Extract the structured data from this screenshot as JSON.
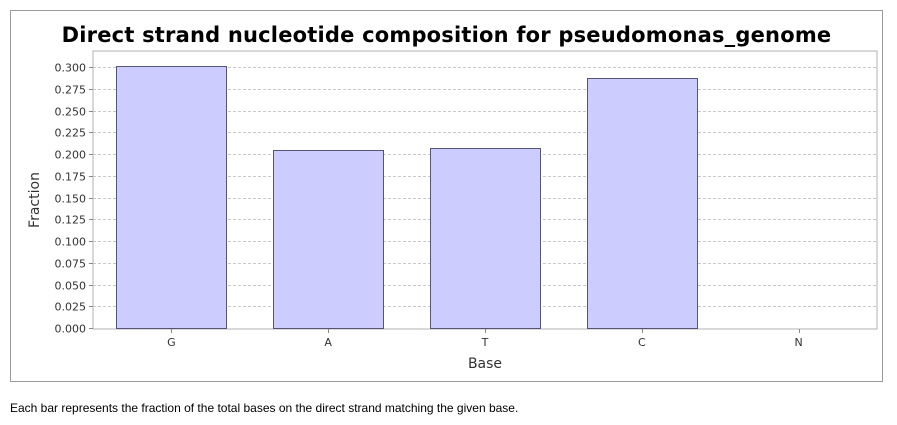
{
  "chart_data": {
    "type": "bar",
    "title": "Direct strand nucleotide composition for pseudomonas_genome",
    "xlabel": "Base",
    "ylabel": "Fraction",
    "categories": [
      "G",
      "A",
      "T",
      "C",
      "N"
    ],
    "values": [
      0.301,
      0.205,
      0.207,
      0.287,
      0
    ],
    "ylim": [
      0,
      0.3
    ],
    "yticks": [
      "0.000",
      "0.025",
      "0.050",
      "0.075",
      "0.100",
      "0.125",
      "0.150",
      "0.175",
      "0.200",
      "0.225",
      "0.250",
      "0.275",
      "0.300"
    ],
    "grid": true,
    "legend": "none",
    "colors": {
      "bar_fill": "#ccccff",
      "bar_stroke": "#555577",
      "grid": "#c8c8c8"
    }
  },
  "caption": "Each bar represents the fraction of the total bases on the direct strand matching the given base."
}
